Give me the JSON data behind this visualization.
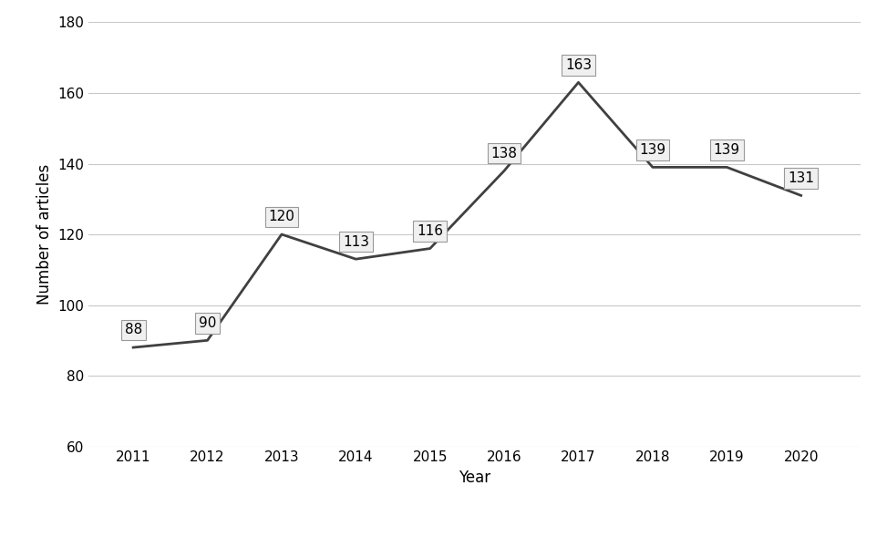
{
  "years": [
    2011,
    2012,
    2013,
    2014,
    2015,
    2016,
    2017,
    2018,
    2019,
    2020
  ],
  "values": [
    88,
    90,
    120,
    113,
    116,
    138,
    163,
    139,
    139,
    131
  ],
  "xlabel": "Year",
  "ylabel": "Number of articles",
  "ylim": [
    60,
    180
  ],
  "yticks": [
    60,
    80,
    100,
    120,
    140,
    160,
    180
  ],
  "line_color": "#404040",
  "line_width": 2.0,
  "annotation_fontsize": 11,
  "axis_fontsize": 12,
  "tick_fontsize": 11,
  "background_color": "#ffffff",
  "grid_color": "#c8c8c8",
  "bbox_facecolor": "#f0f0f0",
  "bbox_edgecolor": "#999999"
}
